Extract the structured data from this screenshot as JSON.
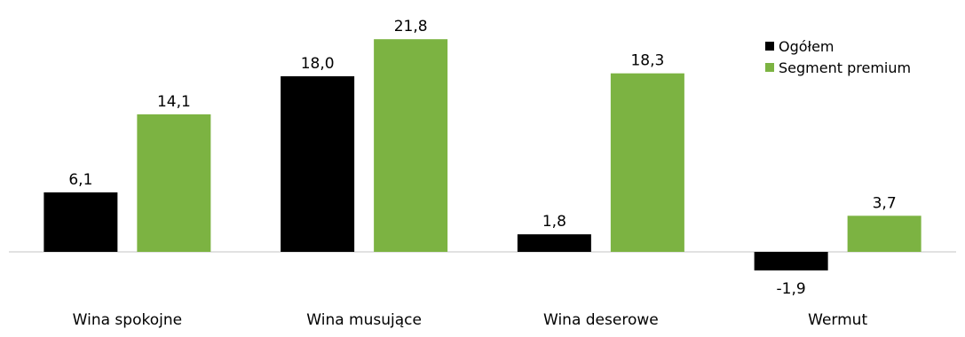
{
  "chart_data": {
    "type": "bar",
    "categories": [
      "Wina spokojne",
      "Wina musujące",
      "Wina deserowe",
      "Wermut"
    ],
    "series": [
      {
        "name": "Ogółem",
        "values": [
          6.1,
          18.0,
          1.8,
          -1.9
        ],
        "labels": [
          "6,1",
          "18,0",
          "1,8",
          "-1,9"
        ],
        "color": "#000000"
      },
      {
        "name": "Segment premium",
        "values": [
          14.1,
          21.8,
          18.3,
          3.7
        ],
        "labels": [
          "14,1",
          "21,8",
          "18,3",
          "3,7"
        ],
        "color": "#7cb342"
      }
    ],
    "ylim": [
      -3,
      25
    ],
    "grid": false,
    "legend_position": "top-right",
    "baseline_color": "#d9d9d9",
    "title": "",
    "xlabel": "",
    "ylabel": ""
  }
}
